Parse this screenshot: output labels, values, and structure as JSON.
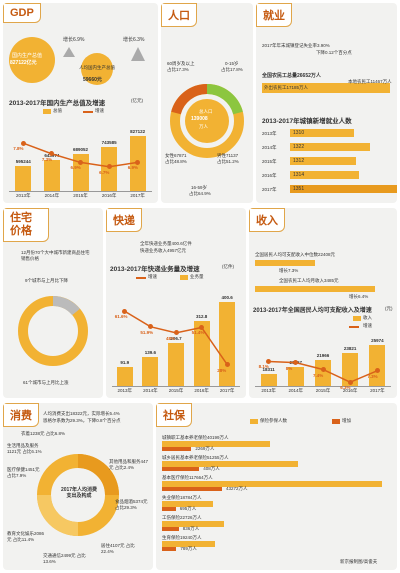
{
  "gdp": {
    "tag": "GDP",
    "gdp_label": "国内生产总值",
    "gdp_value": "827122亿元",
    "growth1": "增长6.9%",
    "pc_label": "人均国内生产总值",
    "pc_value": "59660元",
    "growth2": "增长6.3%",
    "chart_title": "2013-2017年国内生产总值及增速",
    "unit": "(亿元)",
    "legend_bar": "总值",
    "legend_line": "增速",
    "chart_data": {
      "type": "bar",
      "categories": [
        "2013年",
        "2014年",
        "2015年",
        "2016年",
        "2017年"
      ],
      "values": [
        "595244",
        "643974",
        "689052",
        "743585",
        "827122"
      ],
      "growth": [
        "7.8%",
        "7.3%",
        "6.9%",
        "6.7%",
        "6.9%"
      ]
    }
  },
  "population": {
    "tag": "人口",
    "age60": "60周岁及以上",
    "age60_pct": "占比17.3%",
    "age015": "0-15岁",
    "age015_pct": "占比17.8%",
    "total_label": "总人口",
    "total_value": "139008",
    "total_unit": "万人",
    "female": "女性67871",
    "female_pct": "占比48.8%",
    "male": "男性71137",
    "male_pct": "占比51.2%",
    "age1659": "16-59岁",
    "age1659_pct": "占比64.9%"
  },
  "employment": {
    "tag": "就业",
    "line1": "2017年年末城镇登记失业率3.90%",
    "line1b": "下降0.12个百分点",
    "line2": "全国农民工总量26652万人",
    "out": "外出农民工17185万人",
    "local": "本地农民工11467万人",
    "chart_title": "2013-2017年城镇新增就业人数",
    "chart_data": {
      "type": "bar",
      "categories": [
        "2013年",
        "2014年",
        "2015年",
        "2016年",
        "2017年"
      ],
      "values": [
        "1310",
        "1322",
        "1312",
        "1314",
        "1351"
      ]
    }
  },
  "housing": {
    "tag": "住宅价格",
    "line1": "12月份70个大中城市新建商品住宅销售价格",
    "down": "9个城市与上月比下降",
    "up": "61个城市与上月比上涨"
  },
  "express": {
    "tag": "快递",
    "line1": "全年快递业务量400.6亿件",
    "line2": "快递业务收入4957亿元",
    "chart_title": "2013-2017年快递业务量及增速",
    "unit": "(亿件)",
    "legend_bar": "业务量",
    "legend_line": "增速",
    "chart_data": {
      "type": "bar",
      "categories": [
        "2013年",
        "2014年",
        "2015年",
        "2016年",
        "2017年"
      ],
      "values": [
        "91.9",
        "139.6",
        "206.7",
        "312.8",
        "400.6"
      ],
      "growth": [
        "61.6%",
        "51.9%",
        "48%",
        "51.4%",
        "28%"
      ]
    }
  },
  "income": {
    "tag": "收入",
    "line1": "全国居民人均可支配收入中位数22408元",
    "line1b": "增长7.3%",
    "line2": "全国农民工人均月收入3485元",
    "line2b": "增长6.4%",
    "chart_title": "2013-2017年全国居民人均可支配收入及增速",
    "unit": "(元)",
    "legend_bar": "收入",
    "legend_line": "增速",
    "chart_data": {
      "type": "bar",
      "categories": [
        "2013年",
        "2014年",
        "2015年",
        "2016年",
        "2017年"
      ],
      "values": [
        "18311",
        "20167",
        "21966",
        "23821",
        "25974"
      ],
      "growth": [
        "8.1%",
        "8%",
        "7.4%",
        "6.3%",
        "7.3%"
      ]
    }
  },
  "consumption": {
    "tag": "消费",
    "line1": "人均消费支出18322元，实际增长5.4%",
    "line2": "恩格尔系数为29.3%，下降0.8个百分点",
    "center": "2017年人均消费支出及构成",
    "items": [
      "衣着1238元 占比6.8%",
      "生活用品及服务1121元 占比6.1%",
      "医疗保健1451元 占比7.9%",
      "教育文化娱乐2086元 占比11.4%",
      "交通通信2499元 占比13.6%",
      "居住4107元 占比22.4%",
      "食品烟酒5374元 占比29.3%",
      "其他用品和服务447元 占比2.4%"
    ]
  },
  "social": {
    "tag": "社保",
    "legend1": "保险参保人数",
    "legend2": "增加",
    "rows": [
      {
        "label": "城镇职工基本养老保险40199万人",
        "inc": "2269万人",
        "w": 0.49
      },
      {
        "label": "城乡居民基本养老保险51255万人",
        "inc": "408万人",
        "w": 0.62
      },
      {
        "label": "基本医疗保险117664万人",
        "inc": "43272万人",
        "w": 1.0
      },
      {
        "label": "失业保险18784万人",
        "inc": "695万人",
        "w": 0.23
      },
      {
        "label": "工伤保险22726万人",
        "inc": "836万人",
        "w": 0.28
      },
      {
        "label": "生育保险19240万人",
        "inc": "789万人",
        "w": 0.24
      }
    ],
    "credit": "新京报制图/高俊夫"
  }
}
